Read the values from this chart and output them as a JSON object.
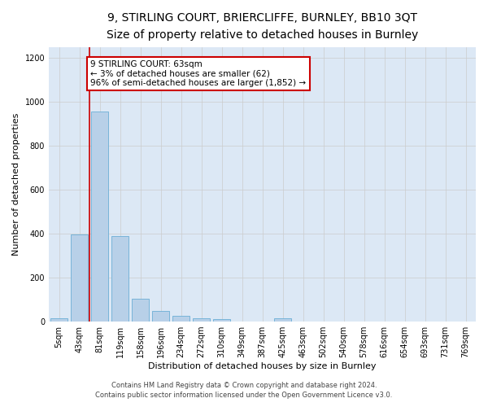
{
  "title_line1": "9, STIRLING COURT, BRIERCLIFFE, BURNLEY, BB10 3QT",
  "title_line2": "Size of property relative to detached houses in Burnley",
  "xlabel": "Distribution of detached houses by size in Burnley",
  "ylabel": "Number of detached properties",
  "bar_labels": [
    "5sqm",
    "43sqm",
    "81sqm",
    "119sqm",
    "158sqm",
    "196sqm",
    "234sqm",
    "272sqm",
    "310sqm",
    "349sqm",
    "387sqm",
    "425sqm",
    "463sqm",
    "502sqm",
    "540sqm",
    "578sqm",
    "616sqm",
    "654sqm",
    "693sqm",
    "731sqm",
    "769sqm"
  ],
  "bar_values": [
    15,
    395,
    955,
    390,
    105,
    50,
    25,
    15,
    13,
    0,
    0,
    15,
    0,
    0,
    0,
    0,
    0,
    0,
    0,
    0,
    0
  ],
  "bar_color": "#b8d0e8",
  "bar_edgecolor": "#6baed6",
  "property_line_x": 1.5,
  "property_line_color": "#cc0000",
  "annotation_text": "9 STIRLING COURT: 63sqm\n← 3% of detached houses are smaller (62)\n96% of semi-detached houses are larger (1,852) →",
  "annotation_box_facecolor": "#ffffff",
  "annotation_box_edgecolor": "#cc0000",
  "ylim": [
    0,
    1250
  ],
  "yticks": [
    0,
    200,
    400,
    600,
    800,
    1000,
    1200
  ],
  "grid_color": "#cccccc",
  "plot_bg_color": "#dce8f5",
  "fig_bg_color": "#ffffff",
  "footnote_line1": "Contains HM Land Registry data © Crown copyright and database right 2024.",
  "footnote_line2": "Contains public sector information licensed under the Open Government Licence v3.0.",
  "title_fontsize": 10,
  "subtitle_fontsize": 9,
  "axis_label_fontsize": 8,
  "tick_fontsize": 7,
  "annotation_fontsize": 7.5,
  "footnote_fontsize": 6
}
